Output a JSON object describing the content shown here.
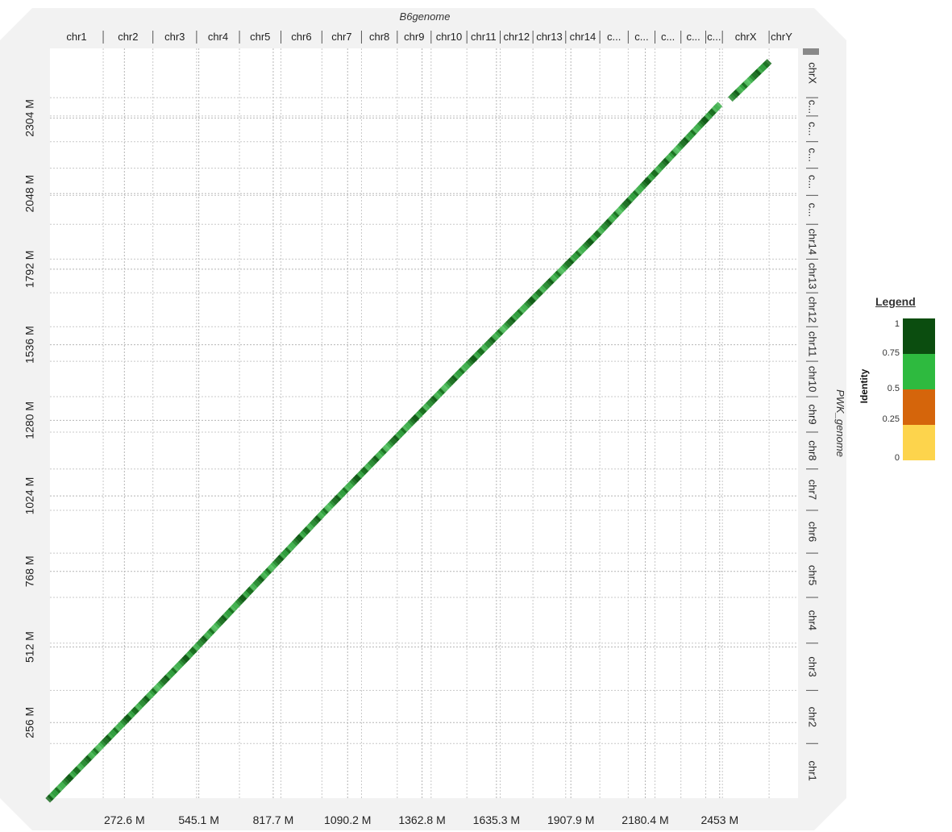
{
  "chart_data": {
    "type": "scatter",
    "title": "",
    "xlabel": "B6genome",
    "ylabel": "PWK_genome",
    "xlim": [
      0,
      2740
    ],
    "ylim": [
      0,
      2540
    ],
    "x_ticks": [
      "272.6 M",
      "545.1 M",
      "817.7 M",
      "1090.2 M",
      "1362.8 M",
      "1635.3 M",
      "1907.9 M",
      "2180.4 M",
      "2453 M"
    ],
    "x_tick_values": [
      272.6,
      545.1,
      817.7,
      1090.2,
      1362.8,
      1635.3,
      1907.9,
      2180.4,
      2453
    ],
    "y_ticks": [
      "256 M",
      "512 M",
      "768 M",
      "1024 M",
      "1280 M",
      "1536 M",
      "1792 M",
      "2048 M",
      "2304 M"
    ],
    "y_tick_values": [
      256,
      512,
      768,
      1024,
      1280,
      1536,
      1792,
      2048,
      2304
    ],
    "x_chromosomes": [
      "chr1",
      "chr2",
      "chr3",
      "chr4",
      "chr5",
      "chr6",
      "chr7",
      "chr8",
      "chr9",
      "chr10",
      "chr11",
      "chr12",
      "chr13",
      "chr14",
      "c...",
      "c...",
      "c...",
      "c...",
      "c...",
      "chrX",
      "chrY"
    ],
    "x_chrom_bounds": [
      0,
      195,
      377,
      537,
      694,
      846,
      996,
      1141,
      1272,
      1396,
      1527,
      1649,
      1769,
      1889,
      2014,
      2118,
      2216,
      2311,
      2402,
      2463,
      2634,
      2725
    ],
    "y_chromosomes": [
      "chr1",
      "chr2",
      "chr3",
      "chr4",
      "chr5",
      "chr6",
      "chr7",
      "chr8",
      "chr9",
      "chr10",
      "chr11",
      "chr12",
      "chr13",
      "chr14",
      "c...",
      "c...",
      "c...",
      "c...",
      "c...",
      "chrX"
    ],
    "y_chrom_bounds": [
      0,
      185,
      365,
      525,
      680,
      830,
      975,
      1115,
      1240,
      1360,
      1480,
      1597,
      1712,
      1826,
      1944,
      2042,
      2134,
      2224,
      2311,
      2373,
      2540
    ],
    "series": [
      {
        "values_x": [
          0,
          500,
          1000,
          1500,
          2000,
          2453,
          2500,
          2634
        ],
        "values_y": [
          0,
          475,
          965,
          1440,
          1905,
          2350,
          2375,
          2495
        ]
      }
    ],
    "grid": true,
    "legend": {
      "title": "Legend",
      "axis_label": "Identity",
      "placement": "right",
      "ticks": [
        "1",
        "0.75",
        "0.5",
        "0.25",
        "0"
      ],
      "colors": [
        "#0b4d0f",
        "#2eba3f",
        "#d5650b",
        "#fdd44c"
      ]
    }
  }
}
